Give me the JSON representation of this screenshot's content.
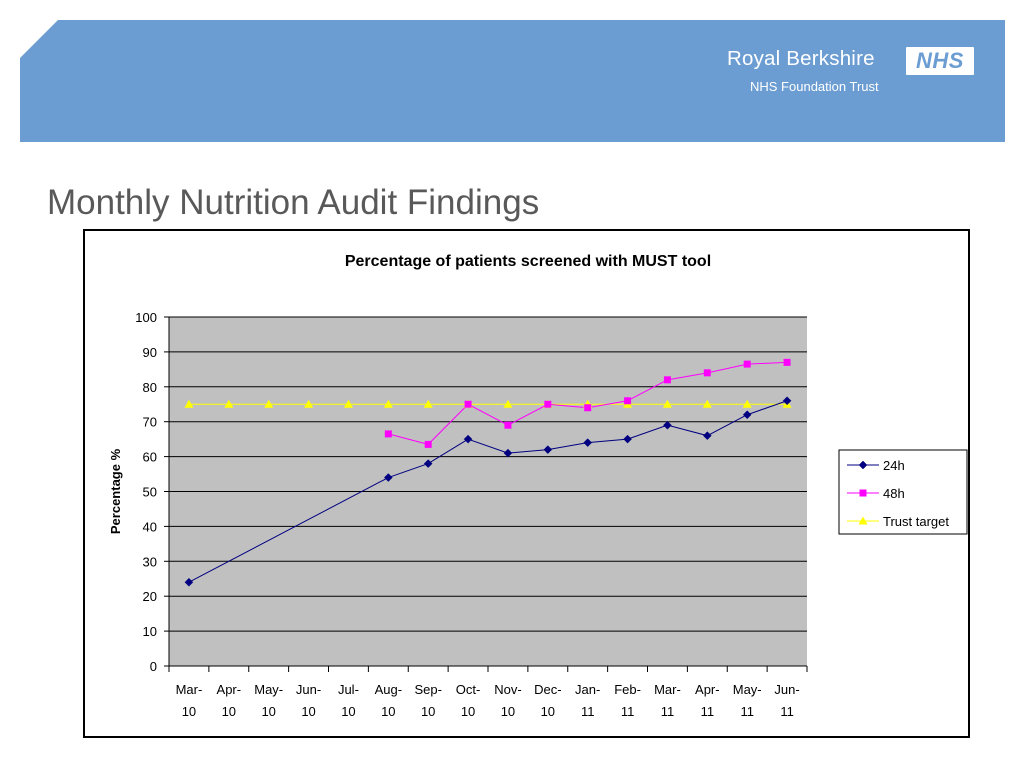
{
  "header": {
    "org_name": "Royal Berkshire",
    "badge": "NHS",
    "org_subtitle": "NHS Foundation Trust"
  },
  "slide": {
    "title": "Monthly Nutrition Audit Findings"
  },
  "colors": {
    "header_band": "#6b9dd3",
    "plot_area": "#c0c0c0",
    "series_24h": "#000080",
    "series_48h": "#ff00ff",
    "series_target": "#ffff00"
  },
  "chart_data": {
    "type": "line",
    "title": "Percentage of patients screened with MUST tool",
    "xlabel": "",
    "ylabel": "Percentage %",
    "ylim": [
      0,
      100
    ],
    "yticks": [
      0,
      10,
      20,
      30,
      40,
      50,
      60,
      70,
      80,
      90,
      100
    ],
    "grid": true,
    "legend_position": "right",
    "categories": [
      [
        "Mar-",
        "10"
      ],
      [
        "Apr-",
        "10"
      ],
      [
        "May-",
        "10"
      ],
      [
        "Jun-",
        "10"
      ],
      [
        "Jul-",
        "10"
      ],
      [
        "Aug-",
        "10"
      ],
      [
        "Sep-",
        "10"
      ],
      [
        "Oct-",
        "10"
      ],
      [
        "Nov-",
        "10"
      ],
      [
        "Dec-",
        "10"
      ],
      [
        "Jan-",
        "11"
      ],
      [
        "Feb-",
        "11"
      ],
      [
        "Mar-",
        "11"
      ],
      [
        "Apr-",
        "11"
      ],
      [
        "May-",
        "11"
      ],
      [
        "Jun-",
        "11"
      ]
    ],
    "series": [
      {
        "name": "24h",
        "marker": "diamond",
        "color": "#000080",
        "values": [
          24,
          null,
          null,
          null,
          null,
          54,
          58,
          65,
          61,
          62,
          64,
          65,
          69,
          66,
          72,
          76
        ]
      },
      {
        "name": "48h",
        "marker": "square",
        "color": "#ff00ff",
        "values": [
          null,
          null,
          null,
          null,
          null,
          66.5,
          63.5,
          75,
          69,
          75,
          74,
          76,
          82,
          84,
          86.5,
          87
        ]
      },
      {
        "name": "Trust target",
        "marker": "triangle",
        "color": "#ffff00",
        "values": [
          75,
          75,
          75,
          75,
          75,
          75,
          75,
          75,
          75,
          75,
          75,
          75,
          75,
          75,
          75,
          75
        ]
      }
    ]
  }
}
